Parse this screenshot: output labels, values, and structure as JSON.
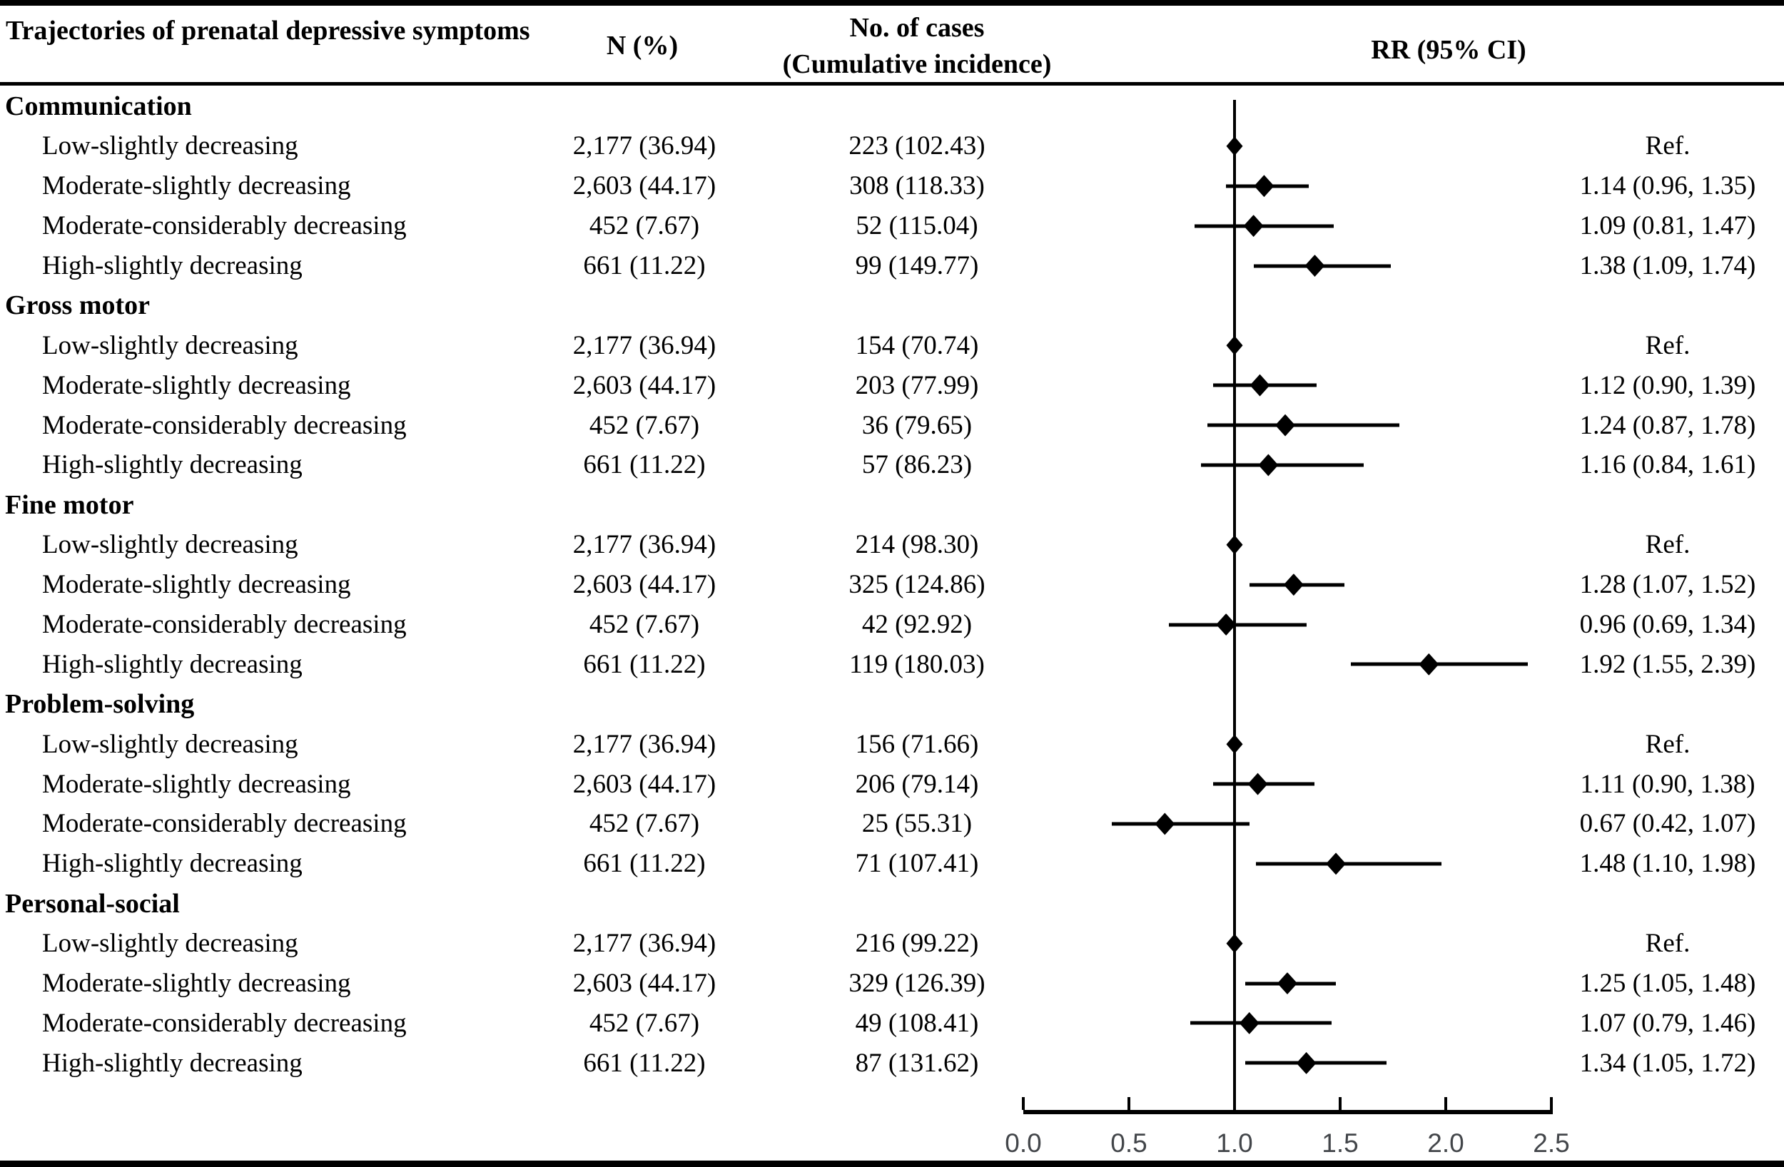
{
  "header": {
    "col1": "Trajectories of prenatal depressive symptoms",
    "col2": "N (%)",
    "col3_line1": "No. of cases",
    "col3_line2": "(Cumulative incidence)",
    "col4": "RR (95% CI)"
  },
  "axis": {
    "min": 0.0,
    "max": 2.5,
    "tick_labels": [
      "0.0",
      "0.5",
      "1.0",
      "1.5",
      "2.0",
      "2.5"
    ],
    "tick_values": [
      0.0,
      0.5,
      1.0,
      1.5,
      2.0,
      2.5
    ],
    "reference_line": 1.0
  },
  "colors": {
    "marker": "#000000",
    "axis_label": "#43464a"
  },
  "sections": [
    {
      "title": "Communication",
      "rows": [
        {
          "label": "Low-slightly decreasing",
          "n": "2,177 (36.94)",
          "cases": "223 (102.43)",
          "rr_text": "Ref.",
          "rr": 1.0,
          "lo": null,
          "hi": null
        },
        {
          "label": "Moderate-slightly decreasing",
          "n": "2,603 (44.17)",
          "cases": "308 (118.33)",
          "rr_text": "1.14 (0.96, 1.35)",
          "rr": 1.14,
          "lo": 0.96,
          "hi": 1.35
        },
        {
          "label": "Moderate-considerably decreasing",
          "n": "452 (7.67)",
          "cases": "52 (115.04)",
          "rr_text": "1.09 (0.81, 1.47)",
          "rr": 1.09,
          "lo": 0.81,
          "hi": 1.47
        },
        {
          "label": "High-slightly decreasing",
          "n": "661 (11.22)",
          "cases": "99 (149.77)",
          "rr_text": "1.38 (1.09, 1.74)",
          "rr": 1.38,
          "lo": 1.09,
          "hi": 1.74
        }
      ]
    },
    {
      "title": "Gross motor",
      "rows": [
        {
          "label": "Low-slightly decreasing",
          "n": "2,177 (36.94)",
          "cases": "154 (70.74)",
          "rr_text": "Ref.",
          "rr": 1.0,
          "lo": null,
          "hi": null
        },
        {
          "label": "Moderate-slightly decreasing",
          "n": "2,603 (44.17)",
          "cases": "203 (77.99)",
          "rr_text": "1.12 (0.90, 1.39)",
          "rr": 1.12,
          "lo": 0.9,
          "hi": 1.39
        },
        {
          "label": "Moderate-considerably decreasing",
          "n": "452 (7.67)",
          "cases": "36 (79.65)",
          "rr_text": "1.24 (0.87, 1.78)",
          "rr": 1.24,
          "lo": 0.87,
          "hi": 1.78
        },
        {
          "label": "High-slightly decreasing",
          "n": "661 (11.22)",
          "cases": "57 (86.23)",
          "rr_text": "1.16 (0.84, 1.61)",
          "rr": 1.16,
          "lo": 0.84,
          "hi": 1.61
        }
      ]
    },
    {
      "title": "Fine motor",
      "rows": [
        {
          "label": "Low-slightly decreasing",
          "n": "2,177 (36.94)",
          "cases": "214 (98.30)",
          "rr_text": "Ref.",
          "rr": 1.0,
          "lo": null,
          "hi": null
        },
        {
          "label": "Moderate-slightly decreasing",
          "n": "2,603 (44.17)",
          "cases": "325 (124.86)",
          "rr_text": "1.28 (1.07, 1.52)",
          "rr": 1.28,
          "lo": 1.07,
          "hi": 1.52
        },
        {
          "label": "Moderate-considerably decreasing",
          "n": "452 (7.67)",
          "cases": "42 (92.92)",
          "rr_text": "0.96 (0.69, 1.34)",
          "rr": 0.96,
          "lo": 0.69,
          "hi": 1.34
        },
        {
          "label": "High-slightly decreasing",
          "n": "661 (11.22)",
          "cases": "119 (180.03)",
          "rr_text": "1.92 (1.55, 2.39)",
          "rr": 1.92,
          "lo": 1.55,
          "hi": 2.39
        }
      ]
    },
    {
      "title": "Problem-solving",
      "rows": [
        {
          "label": "Low-slightly decreasing",
          "n": "2,177 (36.94)",
          "cases": "156 (71.66)",
          "rr_text": "Ref.",
          "rr": 1.0,
          "lo": null,
          "hi": null
        },
        {
          "label": "Moderate-slightly decreasing",
          "n": "2,603 (44.17)",
          "cases": "206 (79.14)",
          "rr_text": "1.11 (0.90, 1.38)",
          "rr": 1.11,
          "lo": 0.9,
          "hi": 1.38
        },
        {
          "label": "Moderate-considerably decreasing",
          "n": "452 (7.67)",
          "cases": "25 (55.31)",
          "rr_text": "0.67 (0.42, 1.07)",
          "rr": 0.67,
          "lo": 0.42,
          "hi": 1.07
        },
        {
          "label": "High-slightly decreasing",
          "n": "661 (11.22)",
          "cases": "71 (107.41)",
          "rr_text": "1.48 (1.10, 1.98)",
          "rr": 1.48,
          "lo": 1.1,
          "hi": 1.98
        }
      ]
    },
    {
      "title": "Personal-social",
      "rows": [
        {
          "label": "Low-slightly decreasing",
          "n": "2,177 (36.94)",
          "cases": "216 (99.22)",
          "rr_text": "Ref.",
          "rr": 1.0,
          "lo": null,
          "hi": null
        },
        {
          "label": "Moderate-slightly decreasing",
          "n": "2,603 (44.17)",
          "cases": "329 (126.39)",
          "rr_text": "1.25 (1.05, 1.48)",
          "rr": 1.25,
          "lo": 1.05,
          "hi": 1.48
        },
        {
          "label": "Moderate-considerably decreasing",
          "n": "452 (7.67)",
          "cases": "49 (108.41)",
          "rr_text": "1.07 (0.79, 1.46)",
          "rr": 1.07,
          "lo": 0.79,
          "hi": 1.46
        },
        {
          "label": "High-slightly decreasing",
          "n": "661 (11.22)",
          "cases": "87 (131.62)",
          "rr_text": "1.34 (1.05, 1.72)",
          "rr": 1.34,
          "lo": 1.05,
          "hi": 1.72
        }
      ]
    }
  ],
  "chart_data": {
    "type": "scatter",
    "subtype": "forest-plot",
    "title": "",
    "xlabel": "RR (95% CI)",
    "ylabel": "Trajectories of prenatal depressive symptoms",
    "xlim": [
      0.0,
      2.5
    ],
    "x_ticks": [
      0.0,
      0.5,
      1.0,
      1.5,
      2.0,
      2.5
    ],
    "reference_line_x": 1.0,
    "marker": "diamond",
    "grid": false,
    "legend": false,
    "series": [
      {
        "group": "Communication",
        "labels": [
          "Low-slightly decreasing",
          "Moderate-slightly decreasing",
          "Moderate-considerably decreasing",
          "High-slightly decreasing"
        ],
        "estimates": [
          1.0,
          1.14,
          1.09,
          1.38
        ],
        "ci_low": [
          null,
          0.96,
          0.81,
          1.09
        ],
        "ci_high": [
          null,
          1.35,
          1.47,
          1.74
        ]
      },
      {
        "group": "Gross motor",
        "labels": [
          "Low-slightly decreasing",
          "Moderate-slightly decreasing",
          "Moderate-considerably decreasing",
          "High-slightly decreasing"
        ],
        "estimates": [
          1.0,
          1.12,
          1.24,
          1.16
        ],
        "ci_low": [
          null,
          0.9,
          0.87,
          0.84
        ],
        "ci_high": [
          null,
          1.39,
          1.78,
          1.61
        ]
      },
      {
        "group": "Fine motor",
        "labels": [
          "Low-slightly decreasing",
          "Moderate-slightly decreasing",
          "Moderate-considerably decreasing",
          "High-slightly decreasing"
        ],
        "estimates": [
          1.0,
          1.28,
          0.96,
          1.92
        ],
        "ci_low": [
          null,
          1.07,
          0.69,
          1.55
        ],
        "ci_high": [
          null,
          1.52,
          1.34,
          2.39
        ]
      },
      {
        "group": "Problem-solving",
        "labels": [
          "Low-slightly decreasing",
          "Moderate-slightly decreasing",
          "Moderate-considerably decreasing",
          "High-slightly decreasing"
        ],
        "estimates": [
          1.0,
          1.11,
          0.67,
          1.48
        ],
        "ci_low": [
          null,
          0.9,
          0.42,
          1.1
        ],
        "ci_high": [
          null,
          1.38,
          1.07,
          1.98
        ]
      },
      {
        "group": "Personal-social",
        "labels": [
          "Low-slightly decreasing",
          "Moderate-slightly decreasing",
          "Moderate-considerably decreasing",
          "High-slightly decreasing"
        ],
        "estimates": [
          1.0,
          1.25,
          1.07,
          1.34
        ],
        "ci_low": [
          null,
          1.05,
          0.79,
          1.05
        ],
        "ci_high": [
          null,
          1.48,
          1.46,
          1.72
        ]
      }
    ]
  }
}
